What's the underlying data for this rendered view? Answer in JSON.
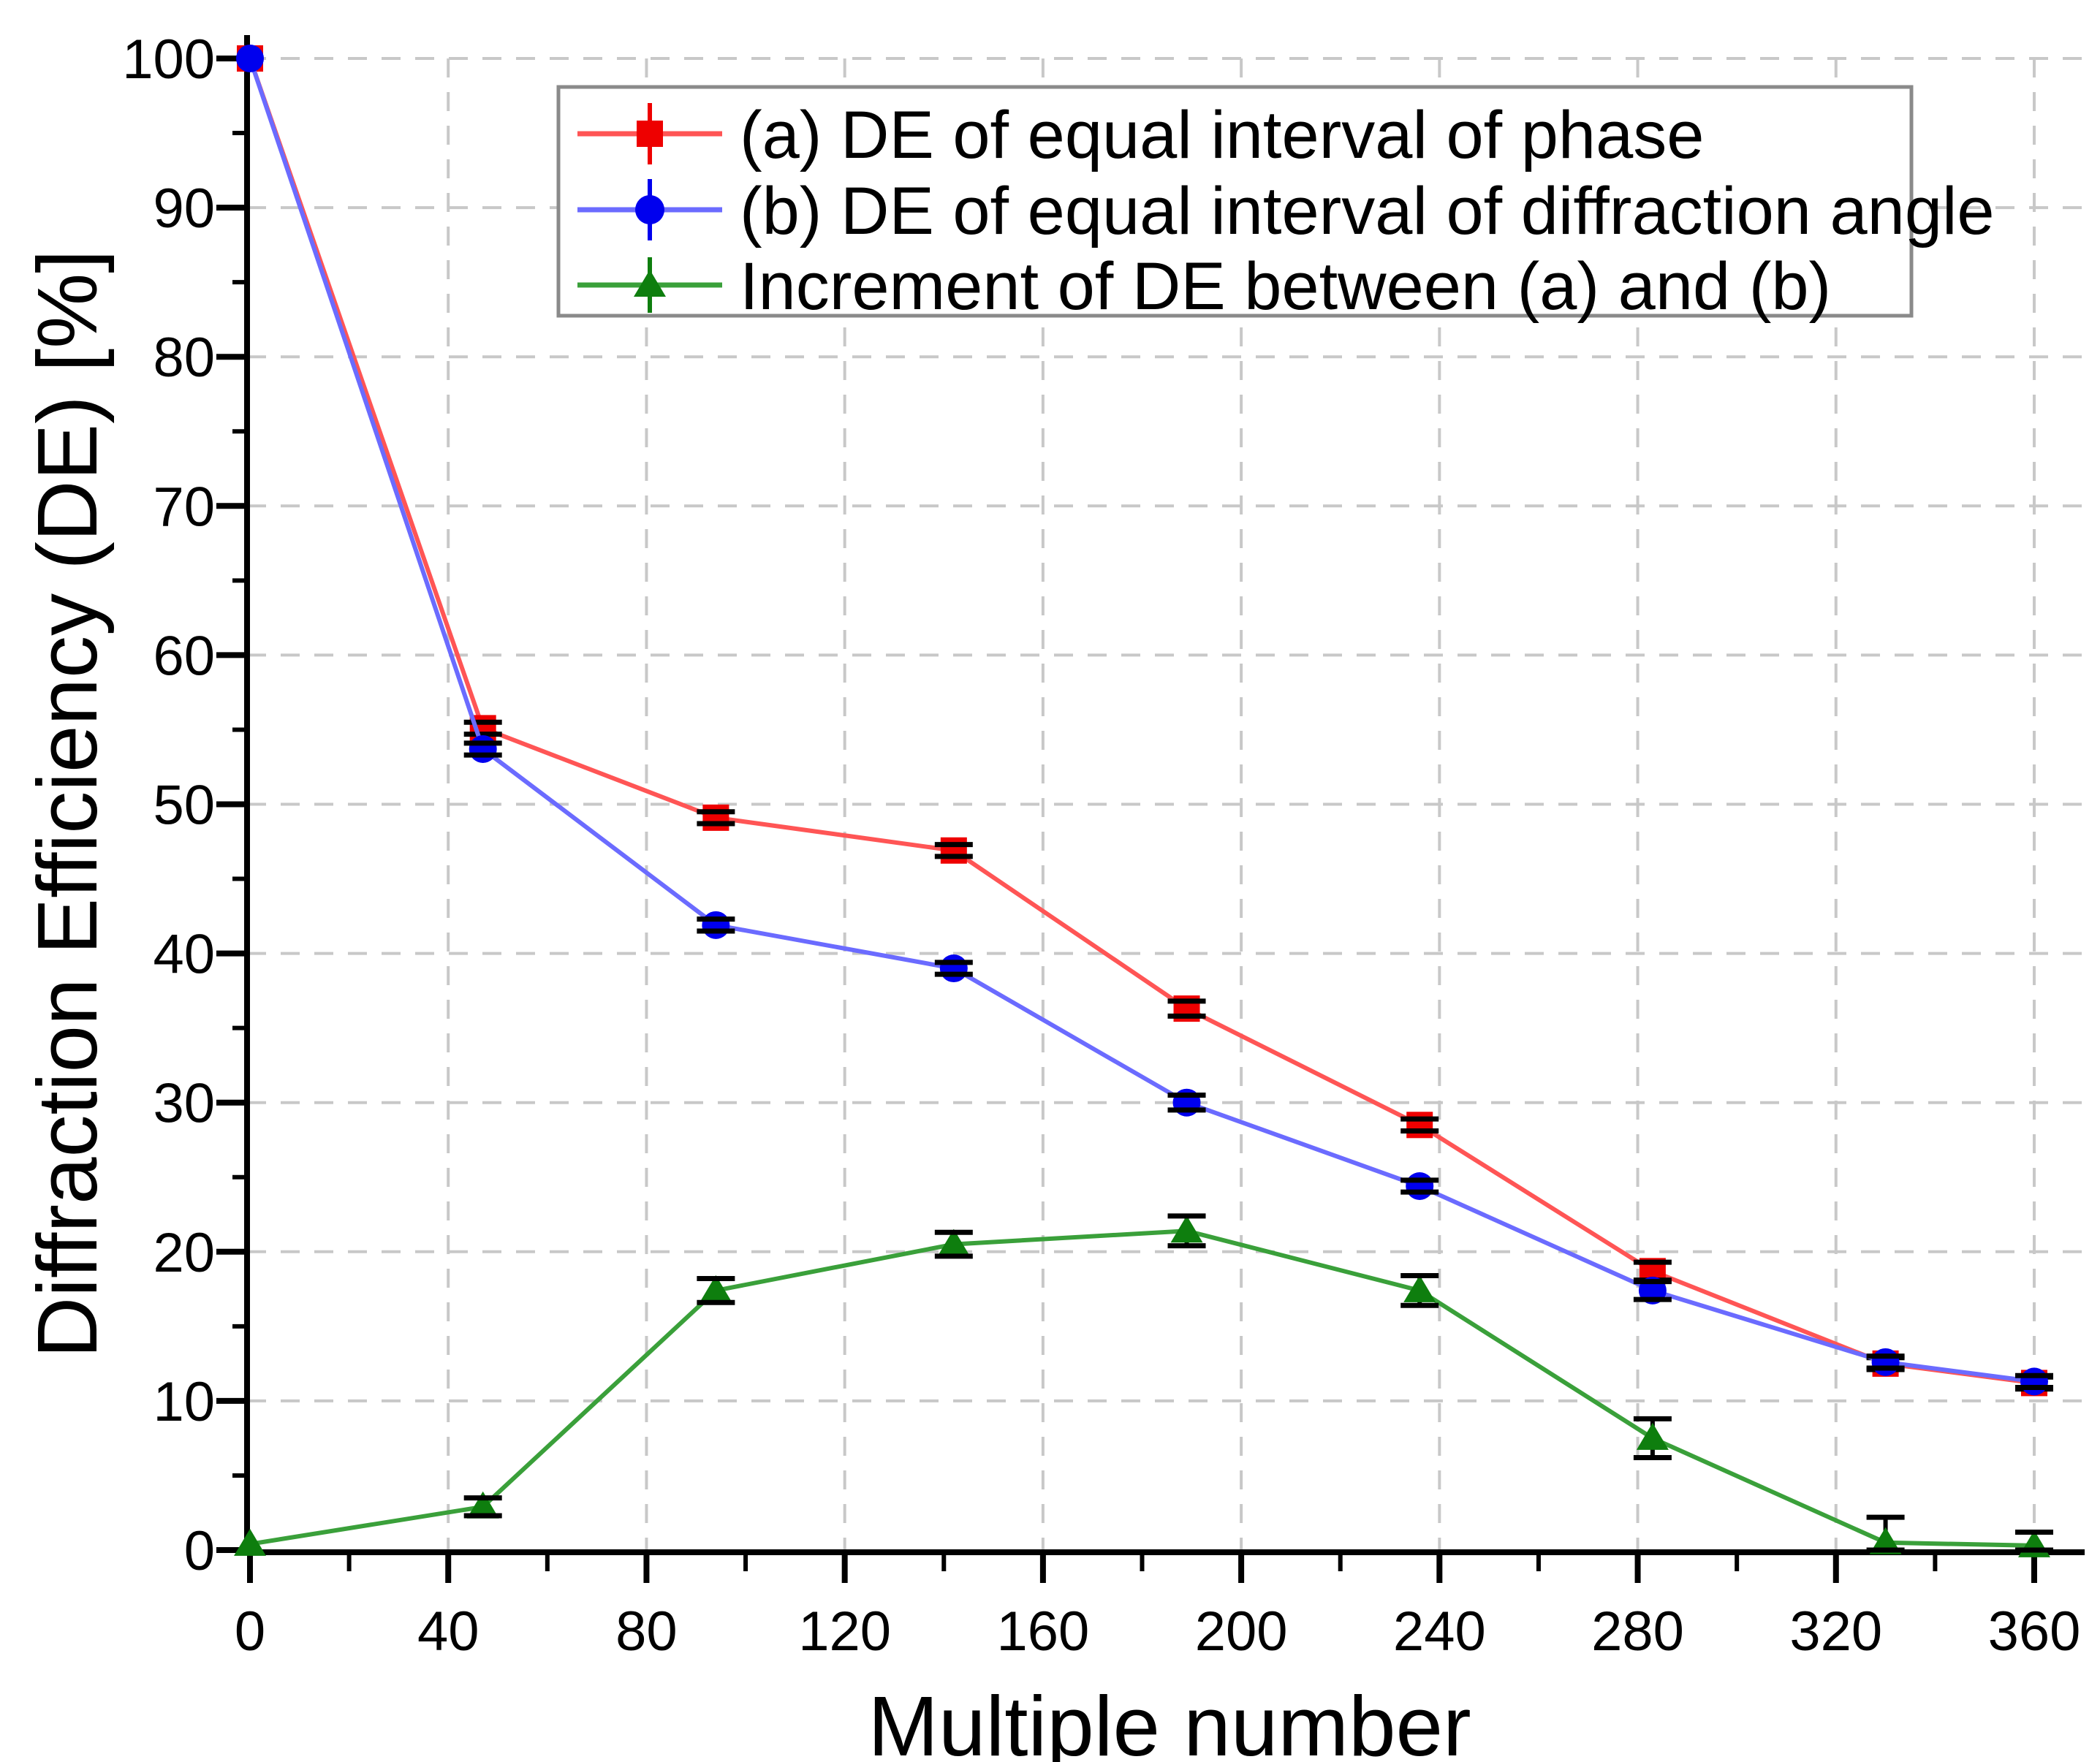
{
  "chart_data": {
    "type": "line",
    "title": "",
    "xlabel": "Multiple number",
    "ylabel": "Diffraction Efficiency (DE) [%]",
    "xlim": [
      0,
      360
    ],
    "ylim": [
      0,
      100
    ],
    "xticks": [
      0,
      40,
      80,
      120,
      160,
      200,
      240,
      280,
      320,
      360
    ],
    "yticks": [
      0,
      10,
      20,
      30,
      40,
      50,
      60,
      70,
      80,
      90,
      100
    ],
    "minor_xtick_step": 20,
    "minor_ytick_step": 5,
    "grid": "dashed",
    "grid_color": "#c8c8c8",
    "axis_color": "#000000",
    "error_bar_color": "#000000",
    "legend_position": "top-inside",
    "legend_border_color": "#8a8a8a",
    "x": [
      0,
      47,
      94,
      142,
      189,
      236,
      283,
      330,
      360
    ],
    "series": [
      {
        "name": "(a) DE of equal interval of phase",
        "marker": "square",
        "marker_color": "#ee0000",
        "line_color": "#ff5555",
        "values": [
          100,
          55.1,
          49.1,
          46.9,
          36.3,
          28.5,
          18.7,
          12.5,
          11.2
        ],
        "err_plus": [
          0,
          0.4,
          0.4,
          0.4,
          0.5,
          0.4,
          0.6,
          0.4,
          0.4
        ],
        "err_minus": [
          0,
          0.4,
          0.4,
          0.4,
          0.5,
          0.4,
          0.6,
          0.4,
          0.4
        ]
      },
      {
        "name": "(b) DE of equal interval of diffraction angle",
        "marker": "circle",
        "marker_color": "#0000ee",
        "line_color": "#6b6bff",
        "values": [
          100,
          53.7,
          41.9,
          39.0,
          30.0,
          24.4,
          17.4,
          12.6,
          11.3
        ],
        "err_plus": [
          0,
          0.4,
          0.4,
          0.4,
          0.5,
          0.4,
          0.6,
          0.4,
          0.4
        ],
        "err_minus": [
          0,
          0.4,
          0.4,
          0.4,
          0.5,
          0.4,
          0.6,
          0.4,
          0.4
        ]
      },
      {
        "name": "Increment of DE between (a) and (b)",
        "marker": "triangle",
        "marker_color": "#0e7e0e",
        "line_color": "#3aa03a",
        "values": [
          0.4,
          2.9,
          17.4,
          20.5,
          21.4,
          17.4,
          7.5,
          0.5,
          0.3
        ],
        "err_plus": [
          0,
          0.6,
          0.8,
          0.8,
          1.0,
          1.0,
          1.3,
          1.7,
          0.9
        ],
        "err_minus": [
          0,
          0.6,
          0.8,
          0.8,
          1.0,
          1.0,
          1.3,
          0.5,
          0.3
        ]
      }
    ]
  }
}
